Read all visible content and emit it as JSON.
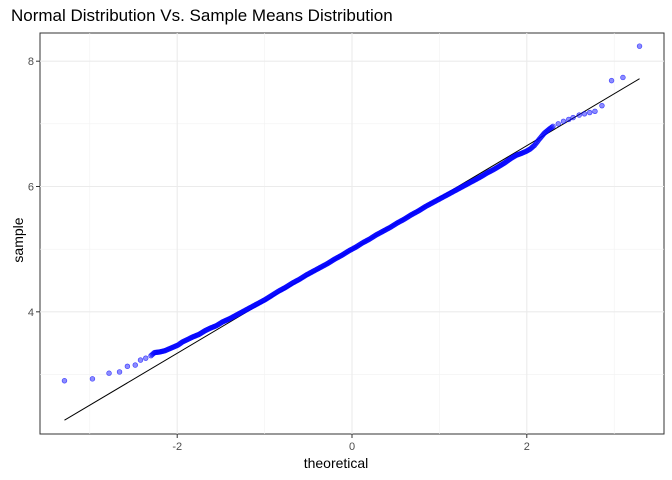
{
  "chart_data": {
    "type": "scatter",
    "title": "Normal Distribution Vs. Sample Means Distribution",
    "xlabel": "theoretical",
    "ylabel": "sample",
    "xlim": [
      -3.57,
      3.57
    ],
    "ylim": [
      2.05,
      8.45
    ],
    "xticks": [
      -2,
      0,
      2
    ],
    "yticks": [
      4,
      6,
      8
    ],
    "xtick_labels": [
      "-2",
      "0",
      "2"
    ],
    "ytick_labels": [
      "4",
      "6",
      "8"
    ],
    "grid": true,
    "reference_line": {
      "x": [
        -3.29,
        3.29
      ],
      "y": [
        2.27,
        7.72
      ]
    },
    "point_color": "#0000ff",
    "point_alpha": 0.45,
    "line_color": "#000000",
    "quantile_points": [
      [
        -3.29,
        2.9
      ],
      [
        -2.97,
        2.93
      ],
      [
        -2.78,
        3.02
      ],
      [
        -2.66,
        3.04
      ],
      [
        -2.57,
        3.13
      ],
      [
        -2.48,
        3.15
      ],
      [
        -2.42,
        3.23
      ],
      [
        -2.36,
        3.26
      ],
      [
        -2.3,
        3.3
      ],
      [
        -2.26,
        3.35
      ],
      [
        -2.2,
        3.36
      ],
      [
        -2.14,
        3.38
      ],
      [
        -2.09,
        3.41
      ],
      [
        -2.04,
        3.44
      ],
      [
        -1.99,
        3.47
      ],
      [
        -1.94,
        3.52
      ],
      [
        -1.88,
        3.56
      ],
      [
        -1.82,
        3.6
      ],
      [
        -1.75,
        3.64
      ],
      [
        -1.68,
        3.7
      ],
      [
        -1.62,
        3.74
      ],
      [
        -1.55,
        3.78
      ],
      [
        -1.48,
        3.84
      ],
      [
        -1.4,
        3.89
      ],
      [
        -1.32,
        3.95
      ],
      [
        -1.24,
        4.01
      ],
      [
        -1.16,
        4.07
      ],
      [
        -1.08,
        4.13
      ],
      [
        -1.0,
        4.19
      ],
      [
        -0.92,
        4.26
      ],
      [
        -0.84,
        4.33
      ],
      [
        -0.76,
        4.39
      ],
      [
        -0.68,
        4.46
      ],
      [
        -0.6,
        4.52
      ],
      [
        -0.52,
        4.59
      ],
      [
        -0.44,
        4.65
      ],
      [
        -0.36,
        4.71
      ],
      [
        -0.28,
        4.77
      ],
      [
        -0.2,
        4.84
      ],
      [
        -0.12,
        4.9
      ],
      [
        -0.04,
        4.97
      ],
      [
        0.04,
        5.03
      ],
      [
        0.12,
        5.1
      ],
      [
        0.2,
        5.16
      ],
      [
        0.28,
        5.23
      ],
      [
        0.36,
        5.29
      ],
      [
        0.44,
        5.35
      ],
      [
        0.52,
        5.42
      ],
      [
        0.6,
        5.48
      ],
      [
        0.68,
        5.55
      ],
      [
        0.76,
        5.61
      ],
      [
        0.84,
        5.68
      ],
      [
        0.92,
        5.74
      ],
      [
        1.0,
        5.8
      ],
      [
        1.08,
        5.86
      ],
      [
        1.16,
        5.92
      ],
      [
        1.24,
        5.98
      ],
      [
        1.32,
        6.04
      ],
      [
        1.4,
        6.1
      ],
      [
        1.48,
        6.16
      ],
      [
        1.55,
        6.22
      ],
      [
        1.62,
        6.27
      ],
      [
        1.68,
        6.32
      ],
      [
        1.75,
        6.38
      ],
      [
        1.82,
        6.45
      ],
      [
        1.88,
        6.5
      ],
      [
        1.94,
        6.53
      ],
      [
        1.99,
        6.56
      ],
      [
        2.04,
        6.6
      ],
      [
        2.09,
        6.66
      ],
      [
        2.14,
        6.75
      ],
      [
        2.2,
        6.85
      ],
      [
        2.26,
        6.92
      ],
      [
        2.3,
        6.96
      ],
      [
        2.36,
        7.0
      ],
      [
        2.42,
        7.04
      ],
      [
        2.48,
        7.07
      ],
      [
        2.53,
        7.1
      ],
      [
        2.6,
        7.14
      ],
      [
        2.66,
        7.16
      ],
      [
        2.72,
        7.18
      ],
      [
        2.78,
        7.2
      ],
      [
        2.86,
        7.29
      ],
      [
        2.97,
        7.69
      ],
      [
        3.1,
        7.74
      ],
      [
        3.29,
        8.24
      ]
    ]
  }
}
